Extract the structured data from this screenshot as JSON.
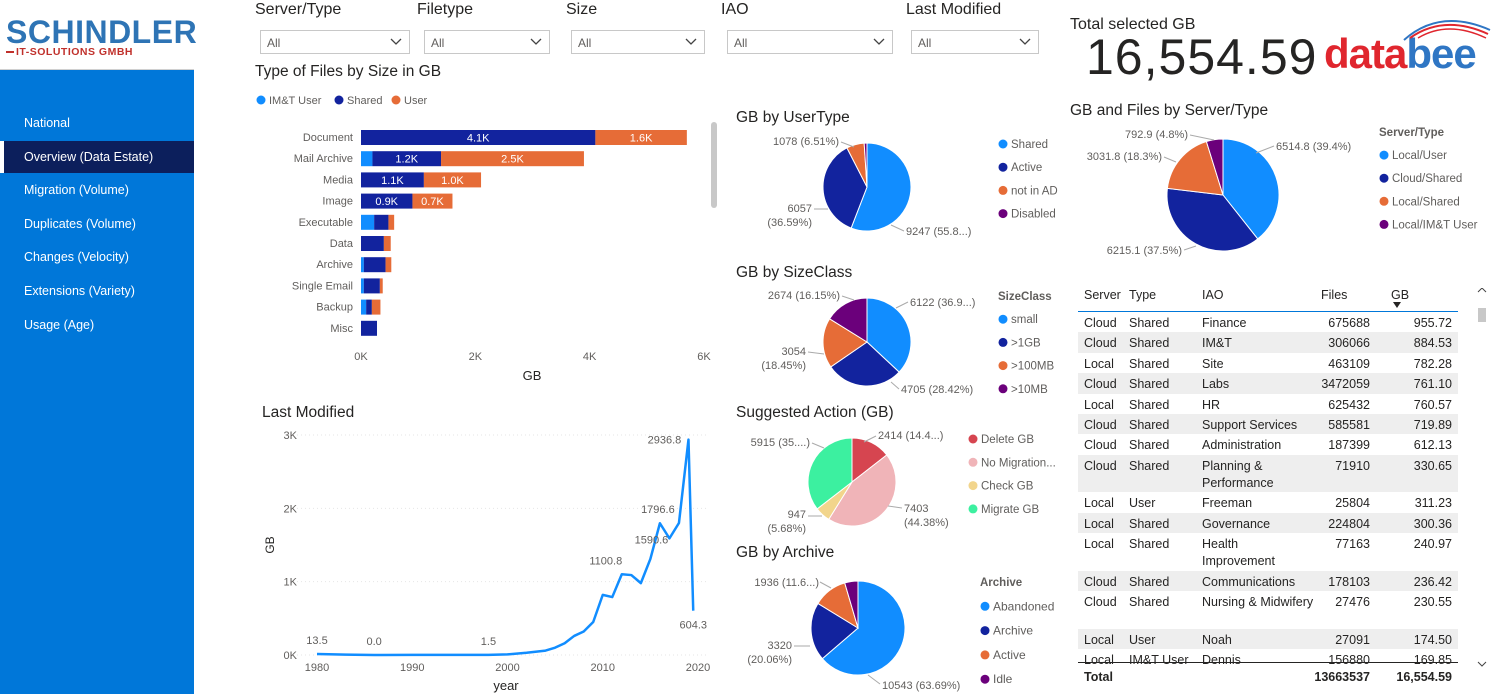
{
  "sidebar": {
    "logo_main": "SCHINDLER",
    "logo_sub": "IT-SOLUTIONS GMBH",
    "items": [
      {
        "label": "National",
        "active": false
      },
      {
        "label": "Overview (Data Estate)",
        "active": true
      },
      {
        "label": "Migration (Volume)",
        "active": false
      },
      {
        "label": "Duplicates (Volume)",
        "active": false
      },
      {
        "label": "Changes (Velocity)",
        "active": false
      },
      {
        "label": "Extensions (Variety)",
        "active": false
      },
      {
        "label": "Usage (Age)",
        "active": false
      }
    ]
  },
  "filters": [
    {
      "label": "Server/Type",
      "value": "All"
    },
    {
      "label": "Filetype",
      "value": "All"
    },
    {
      "label": "Size",
      "value": "All"
    },
    {
      "label": "IAO",
      "value": "All"
    },
    {
      "label": "Last Modified",
      "value": "All"
    }
  ],
  "total": {
    "label": "Total selected GB",
    "value": "16,554.59"
  },
  "brand": {
    "data": "data",
    "bee": "bee",
    "color_data": "#e0262e",
    "color_bee": "#2f76c4"
  },
  "colors": {
    "light_blue": "#118dff",
    "dark_blue": "#12239e",
    "orange": "#e66c37",
    "purple": "#6b007b",
    "red": "#d64550",
    "pink": "#f0b4b8",
    "yellow": "#f2d58c",
    "green": "#3cf0a0"
  },
  "chart_data": [
    {
      "type": "bar",
      "orientation": "horizontal-stacked",
      "title": "Type of Files by Size in GB",
      "xlabel": "GB",
      "xlim": [
        0,
        6000
      ],
      "xticks": [
        "0K",
        "2K",
        "4K",
        "6K"
      ],
      "legend": [
        "IM&T User",
        "Shared",
        "User"
      ],
      "categories": [
        "Document",
        "Mail Archive",
        "Media",
        "Image",
        "Executable",
        "Data",
        "Archive",
        "Single Email",
        "Backup",
        "Misc"
      ],
      "series": [
        {
          "name": "IM&T User",
          "values": [
            0,
            200,
            0,
            0,
            230,
            0,
            50,
            50,
            90,
            0
          ]
        },
        {
          "name": "Shared",
          "values": [
            4100,
            1200,
            1100,
            900,
            250,
            400,
            380,
            280,
            100,
            280
          ]
        },
        {
          "name": "User",
          "values": [
            1600,
            2500,
            1000,
            700,
            100,
            120,
            100,
            50,
            150,
            0
          ]
        }
      ],
      "data_labels": [
        [
          "",
          "4.1K",
          "1.6K"
        ],
        [
          "",
          "1.2K",
          "2.5K"
        ],
        [
          "",
          "1.1K",
          "1.0K"
        ],
        [
          "",
          "0.9K",
          "0.7K"
        ]
      ]
    },
    {
      "type": "line",
      "title": "Last Modified",
      "xlabel": "year",
      "ylabel": "GB",
      "ylim": [
        0,
        3000
      ],
      "yticks": [
        "0K",
        "1K",
        "2K",
        "3K"
      ],
      "xticks": [
        "1980",
        "1990",
        "2000",
        "2010",
        "2020"
      ],
      "xlim": [
        1980,
        2020
      ],
      "x": [
        1980,
        1983,
        1986,
        1990,
        1995,
        1998,
        2000,
        2002,
        2004,
        2005,
        2006,
        2007,
        2008,
        2009,
        2010,
        2011,
        2012,
        2013,
        2014,
        2015,
        2016,
        2017,
        2018,
        2019,
        2019.5
      ],
      "y": [
        13.5,
        5,
        0,
        2,
        2,
        1.5,
        8,
        30,
        60,
        100,
        160,
        260,
        320,
        450,
        820,
        790,
        1100.8,
        1090,
        980,
        1310,
        1796.6,
        1590.6,
        1800,
        2936.8,
        604.3
      ],
      "point_labels": [
        {
          "x": 1980,
          "text": "13.5"
        },
        {
          "x": 1986,
          "text": "0.0"
        },
        {
          "x": 1998,
          "text": "1.5"
        },
        {
          "x": 2012,
          "text": "1100.8"
        },
        {
          "x": 2016,
          "text": "1796.6"
        },
        {
          "x": 2017,
          "text": "1590.6"
        },
        {
          "x": 2019,
          "text": "2936.8"
        },
        {
          "x": 2019.5,
          "text": "604.3"
        }
      ]
    },
    {
      "type": "pie",
      "title": "GB by UserType",
      "slices": [
        {
          "name": "Shared",
          "value": 9247,
          "label": "9247 (55.8...)"
        },
        {
          "name": "Active",
          "value": 6057,
          "label": "6057 (36.59%)"
        },
        {
          "name": "not in AD",
          "value": 1078,
          "label": "1078 (6.51%)"
        },
        {
          "name": "Disabled",
          "value": 170,
          "label": ""
        }
      ]
    },
    {
      "type": "pie",
      "title": "GB by SizeClass",
      "legend_title": "SizeClass",
      "slices": [
        {
          "name": "small",
          "value": 6122,
          "label": "6122 (36.9...)"
        },
        {
          "name": ">1GB",
          "value": 4705,
          "label": "4705 (28.42%)"
        },
        {
          "name": ">100MB",
          "value": 3054,
          "label": "3054 (18.45%)"
        },
        {
          "name": ">10MB",
          "value": 2674,
          "label": "2674 (16.15%)"
        }
      ]
    },
    {
      "type": "pie",
      "title": "Suggested Action (GB)",
      "slices": [
        {
          "name": "Delete GB",
          "value": 2414,
          "label": "2414 (14.4...)"
        },
        {
          "name": "No Migration...",
          "value": 7403,
          "label": "7403 (44.38%)"
        },
        {
          "name": "Check GB",
          "value": 947,
          "label": "947 (5.68%)"
        },
        {
          "name": "Migrate GB",
          "value": 5915,
          "label": "5915 (35....)"
        }
      ]
    },
    {
      "type": "pie",
      "title": "GB by Archive",
      "legend_title": "Archive",
      "slices": [
        {
          "name": "Abandoned",
          "value": 10543,
          "label": "10543 (63.69%)"
        },
        {
          "name": "Archive",
          "value": 3320,
          "label": "3320 (20.06%)"
        },
        {
          "name": "Active",
          "value": 1936,
          "label": "1936 (11.6...)"
        },
        {
          "name": "Idle",
          "value": 755,
          "label": ""
        }
      ]
    },
    {
      "type": "pie",
      "title": "GB and Files by Server/Type",
      "legend_title": "Server/Type",
      "slices": [
        {
          "name": "Local/User",
          "value": 6514.8,
          "label": "6514.8 (39.4%)"
        },
        {
          "name": "Cloud/Shared",
          "value": 6215.1,
          "label": "6215.1 (37.5%)"
        },
        {
          "name": "Local/Shared",
          "value": 3031.8,
          "label": "3031.8 (18.3%)"
        },
        {
          "name": "Local/IM&T User",
          "value": 792.9,
          "label": "792.9 (4.8%)"
        }
      ]
    },
    {
      "type": "table",
      "columns": [
        "Server",
        "Type",
        "IAO",
        "Files",
        "GB"
      ],
      "sort_column": "GB",
      "rows": [
        [
          "Cloud",
          "Shared",
          "Finance",
          "675688",
          "955.72"
        ],
        [
          "Cloud",
          "Shared",
          "IM&T",
          "306066",
          "884.53"
        ],
        [
          "Local",
          "Shared",
          "Site",
          "463109",
          "782.28"
        ],
        [
          "Cloud",
          "Shared",
          "Labs",
          "3472059",
          "761.10"
        ],
        [
          "Local",
          "Shared",
          "HR",
          "625432",
          "760.57"
        ],
        [
          "Cloud",
          "Shared",
          "Support Services",
          "585581",
          "719.89"
        ],
        [
          "Cloud",
          "Shared",
          "Administration",
          "187399",
          "612.13"
        ],
        [
          "Cloud",
          "Shared",
          "Planning & Performance",
          "71910",
          "330.65"
        ],
        [
          "Local",
          "User",
          "Freeman",
          "25804",
          "311.23"
        ],
        [
          "Local",
          "Shared",
          "Governance",
          "224804",
          "300.36"
        ],
        [
          "Local",
          "Shared",
          "Health Improvement",
          "77163",
          "240.97"
        ],
        [
          "Cloud",
          "Shared",
          "Communications",
          "178103",
          "236.42"
        ],
        [
          "Cloud",
          "Shared",
          "Nursing & Midwifery",
          "27476",
          "230.55"
        ],
        [
          "Local",
          "User",
          "Noah",
          "27091",
          "174.50"
        ],
        [
          "Local",
          "IM&T User",
          "Dennis",
          "156880",
          "169.85"
        ]
      ],
      "total": [
        "Total",
        "",
        "",
        "13663537",
        "16,554.59"
      ]
    }
  ]
}
